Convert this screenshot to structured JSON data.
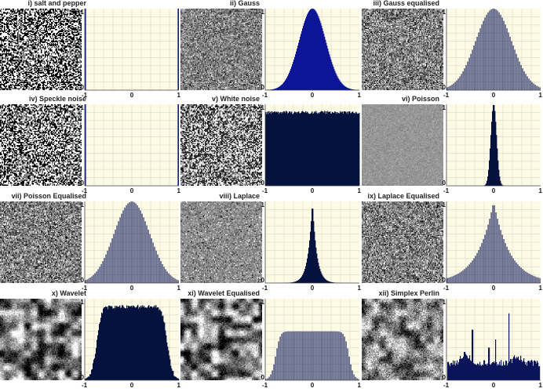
{
  "chart_data": [
    {
      "type": "histogram",
      "title": "i) salt and pepper",
      "shape": "saltpepper",
      "noise": "binary",
      "xlim": [
        -1,
        1
      ],
      "ylim": [
        0,
        1
      ],
      "x_ticks": [
        "-1",
        "0",
        "1"
      ],
      "y_ticks": [
        "0",
        "1"
      ],
      "grid": true
    },
    {
      "type": "histogram",
      "title": "ii) Gauss",
      "shape": "gauss",
      "noise": "gauss",
      "xlim": [
        -1,
        1
      ],
      "ylim": [
        0,
        1
      ],
      "x_ticks": [
        "-1",
        "0",
        "1"
      ],
      "y_ticks": [
        "0",
        "1"
      ],
      "grid": true
    },
    {
      "type": "histogram",
      "title": "iii) Gauss equalised",
      "shape": "gauss_eq",
      "noise": "gauss_eq",
      "xlim": [
        -1,
        1
      ],
      "ylim": [
        0,
        1
      ],
      "x_ticks": [
        "-1",
        "0",
        "1"
      ],
      "y_ticks": [
        "0",
        "1"
      ],
      "grid": true
    },
    {
      "type": "histogram",
      "title": "iv) Speckle noise",
      "shape": "saltpepper",
      "noise": "speckle",
      "xlim": [
        -1,
        1
      ],
      "ylim": [
        0,
        1
      ],
      "x_ticks": [
        "-1",
        "0",
        "1"
      ],
      "y_ticks": [
        "0",
        "1"
      ],
      "grid": true
    },
    {
      "type": "histogram",
      "title": "v) White noise",
      "shape": "uniform",
      "noise": "white",
      "xlim": [
        -1,
        1
      ],
      "ylim": [
        0,
        1
      ],
      "x_ticks": [
        "-1",
        "0",
        "1"
      ],
      "y_ticks": [
        "0",
        "1"
      ],
      "grid": true
    },
    {
      "type": "histogram",
      "title": "vi) Poisson",
      "shape": "poisson",
      "noise": "poisson",
      "xlim": [
        -1,
        1
      ],
      "ylim": [
        0,
        1
      ],
      "x_ticks": [
        "-1",
        "0",
        "1"
      ],
      "y_ticks": [
        "0",
        "1"
      ],
      "grid": true
    },
    {
      "type": "histogram",
      "title": "vii) Poisson Equalised",
      "shape": "gauss_eq",
      "noise": "gauss_eq",
      "xlim": [
        -1,
        1
      ],
      "ylim": [
        0,
        1
      ],
      "x_ticks": [
        "-1",
        "0",
        "1"
      ],
      "y_ticks": [
        "0",
        "1"
      ],
      "grid": true
    },
    {
      "type": "histogram",
      "title": "viii) Laplace",
      "shape": "laplace",
      "noise": "laplace",
      "xlim": [
        -1,
        1
      ],
      "ylim": [
        0,
        1
      ],
      "x_ticks": [
        "-1",
        "0",
        "1"
      ],
      "y_ticks": [
        "0",
        "1"
      ],
      "grid": true
    },
    {
      "type": "histogram",
      "title": "ix) Laplace Equalised",
      "shape": "laplace_eq",
      "noise": "laplace_eq",
      "xlim": [
        -1,
        1
      ],
      "ylim": [
        0,
        1
      ],
      "x_ticks": [
        "-1",
        "0",
        "1"
      ],
      "y_ticks": [
        "0",
        "1"
      ],
      "grid": true
    },
    {
      "type": "histogram",
      "title": "x) Wavelet",
      "shape": "wavelet",
      "noise": "wavelet",
      "xlim": [
        -1,
        1
      ],
      "ylim": [
        0,
        1
      ],
      "x_ticks": [
        "-1",
        "0",
        "1"
      ],
      "y_ticks": [
        "0",
        "1"
      ],
      "grid": true
    },
    {
      "type": "histogram",
      "title": "xi) Wavelet Equalised",
      "shape": "wavelet_eq",
      "noise": "wavelet_eq",
      "xlim": [
        -1,
        1
      ],
      "ylim": [
        0,
        1
      ],
      "x_ticks": [
        "-1",
        "0",
        "1"
      ],
      "y_ticks": [
        "0",
        "1"
      ],
      "grid": true
    },
    {
      "type": "histogram",
      "title": "xii) Simplex Perlin",
      "shape": "perlin",
      "noise": "perlin",
      "xlim": [
        -1,
        1
      ],
      "ylim": [
        0,
        1
      ],
      "x_ticks": [
        "-1",
        "0",
        "1"
      ],
      "y_ticks": [
        "0",
        "1"
      ],
      "grid": true
    }
  ],
  "colors": {
    "plot_background": "#fdfbe6",
    "grid": "#dcdac6",
    "bar_fill": "#0a1458",
    "bar_fill_bright": "#0b1596",
    "bar_fill_dark": "#05123e",
    "axis": "#444444"
  }
}
